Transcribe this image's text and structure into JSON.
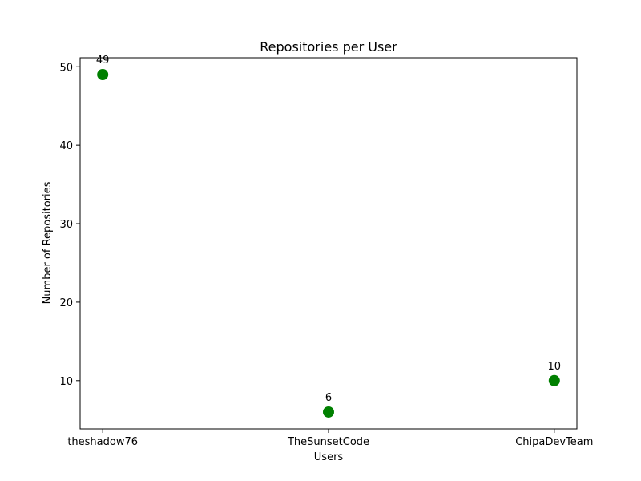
{
  "chart_data": {
    "type": "scatter",
    "title": "Repositories per User",
    "xlabel": "Users",
    "ylabel": "Number of Repositories",
    "categories": [
      "theshadow76",
      "TheSunsetCode",
      "ChipaDevTeam"
    ],
    "values": [
      49,
      6,
      10
    ],
    "data_labels": [
      "49",
      "6",
      "10"
    ],
    "yticks": [
      10,
      20,
      30,
      40,
      50
    ],
    "ylim": [
      3.85,
      51.15
    ],
    "grid": false,
    "legend": "none",
    "marker_color": "#008000"
  }
}
